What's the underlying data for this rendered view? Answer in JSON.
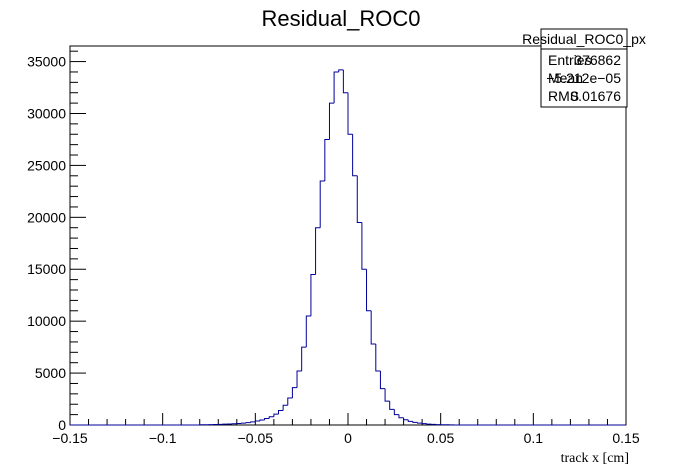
{
  "chart_data": {
    "type": "histogram",
    "title": "Residual_ROC0",
    "xlabel": "track  x  [cm]",
    "ylabel": "",
    "xlim": [
      -0.15,
      0.15
    ],
    "ylim": [
      0,
      36500
    ],
    "x_ticks": [
      -0.15,
      -0.1,
      -0.05,
      0,
      0.05,
      0.1,
      0.15
    ],
    "x_tick_labels": [
      "−0.15",
      "−0.1",
      "−0.05",
      "0",
      "0.05",
      "0.1",
      "0.15"
    ],
    "y_ticks": [
      0,
      5000,
      10000,
      15000,
      20000,
      25000,
      30000,
      35000
    ],
    "y_tick_labels": [
      "0",
      "5000",
      "10000",
      "15000",
      "20000",
      "25000",
      "30000",
      "35000"
    ],
    "bin_width": 0.0025,
    "x_start": -0.15,
    "values": [
      0,
      0,
      0,
      0,
      0,
      0,
      0,
      0,
      0,
      0,
      0,
      0,
      0,
      0,
      0,
      0,
      0,
      0,
      0,
      0,
      0,
      0,
      0,
      0,
      0,
      0,
      0,
      0,
      20,
      30,
      40,
      50,
      60,
      80,
      100,
      120,
      150,
      180,
      230,
      300,
      380,
      480,
      620,
      800,
      1050,
      1400,
      1900,
      2600,
      3600,
      5200,
      7500,
      10500,
      14500,
      19000,
      23500,
      27500,
      31000,
      34000,
      34200,
      32000,
      28000,
      24000,
      19500,
      15000,
      11000,
      7800,
      5200,
      3500,
      2300,
      1500,
      1000,
      700,
      500,
      350,
      250,
      180,
      130,
      90,
      60,
      40,
      30,
      20,
      10,
      0,
      0,
      0,
      0,
      0,
      0,
      0,
      0,
      0,
      0,
      0,
      0,
      0,
      0,
      0,
      0,
      0,
      0,
      0,
      0,
      0,
      0,
      0,
      0,
      0,
      0,
      0,
      0,
      0,
      0,
      0,
      0,
      0,
      0,
      0,
      0,
      0
    ],
    "series_color": "#000099",
    "stats_box": {
      "name": "Residual_ROC0_px",
      "rows": [
        {
          "label": "Entries",
          "value": "376862"
        },
        {
          "label": "Mean",
          "value": "−5.212e−05"
        },
        {
          "label": "RMS",
          "value": "0.01676"
        }
      ]
    }
  }
}
